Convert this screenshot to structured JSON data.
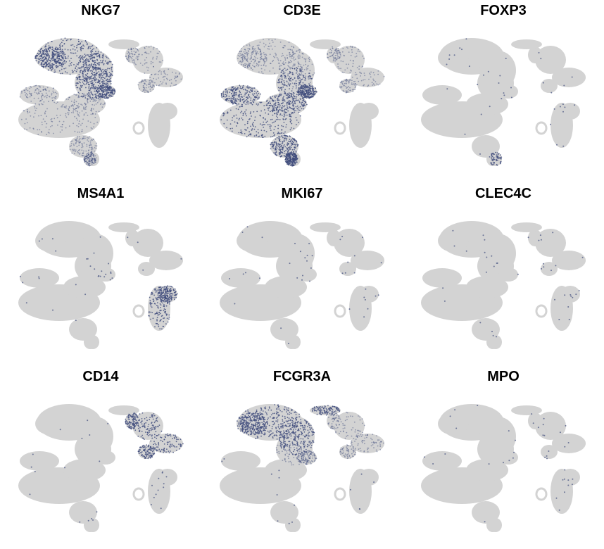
{
  "chart_data": {
    "type": "scatter",
    "layout": "3x3 small multiples (feature plots)",
    "axes_visible": false,
    "grid": false,
    "legend": "none",
    "colors": {
      "low": "#d3d3d3",
      "high": "#3f4b7c"
    },
    "panels": [
      {
        "title": "NKG7",
        "high_regions": [
          "top-left-lobe",
          "upper-middle-lobe"
        ],
        "mid_regions": [
          "left-lower-mass",
          "right-upper-lobe"
        ],
        "sparse": false
      },
      {
        "title": "CD3E",
        "high_regions": [
          "left-lower-mass",
          "upper-middle-lobe"
        ],
        "mid_regions": [
          "top-left-lobe",
          "right-upper-lobe"
        ],
        "sparse": false
      },
      {
        "title": "FOXP3",
        "high_regions": [
          "bottom-tip"
        ],
        "mid_regions": [],
        "sparse": true
      },
      {
        "title": "MS4A1",
        "high_regions": [
          "right-lower-mass"
        ],
        "mid_regions": [],
        "sparse": true
      },
      {
        "title": "MKI67",
        "high_regions": [],
        "mid_regions": [],
        "sparse": true
      },
      {
        "title": "CLEC4C",
        "high_regions": [],
        "mid_regions": [],
        "sparse": true
      },
      {
        "title": "CD14",
        "high_regions": [
          "right-upper-lobe"
        ],
        "mid_regions": [],
        "sparse": true
      },
      {
        "title": "FCGR3A",
        "high_regions": [
          "top-left-lobe",
          "top-small-cluster"
        ],
        "mid_regions": [
          "upper-middle-lobe",
          "right-upper-lobe"
        ],
        "sparse": true
      },
      {
        "title": "MPO",
        "high_regions": [],
        "mid_regions": [],
        "sparse": true
      }
    ]
  }
}
